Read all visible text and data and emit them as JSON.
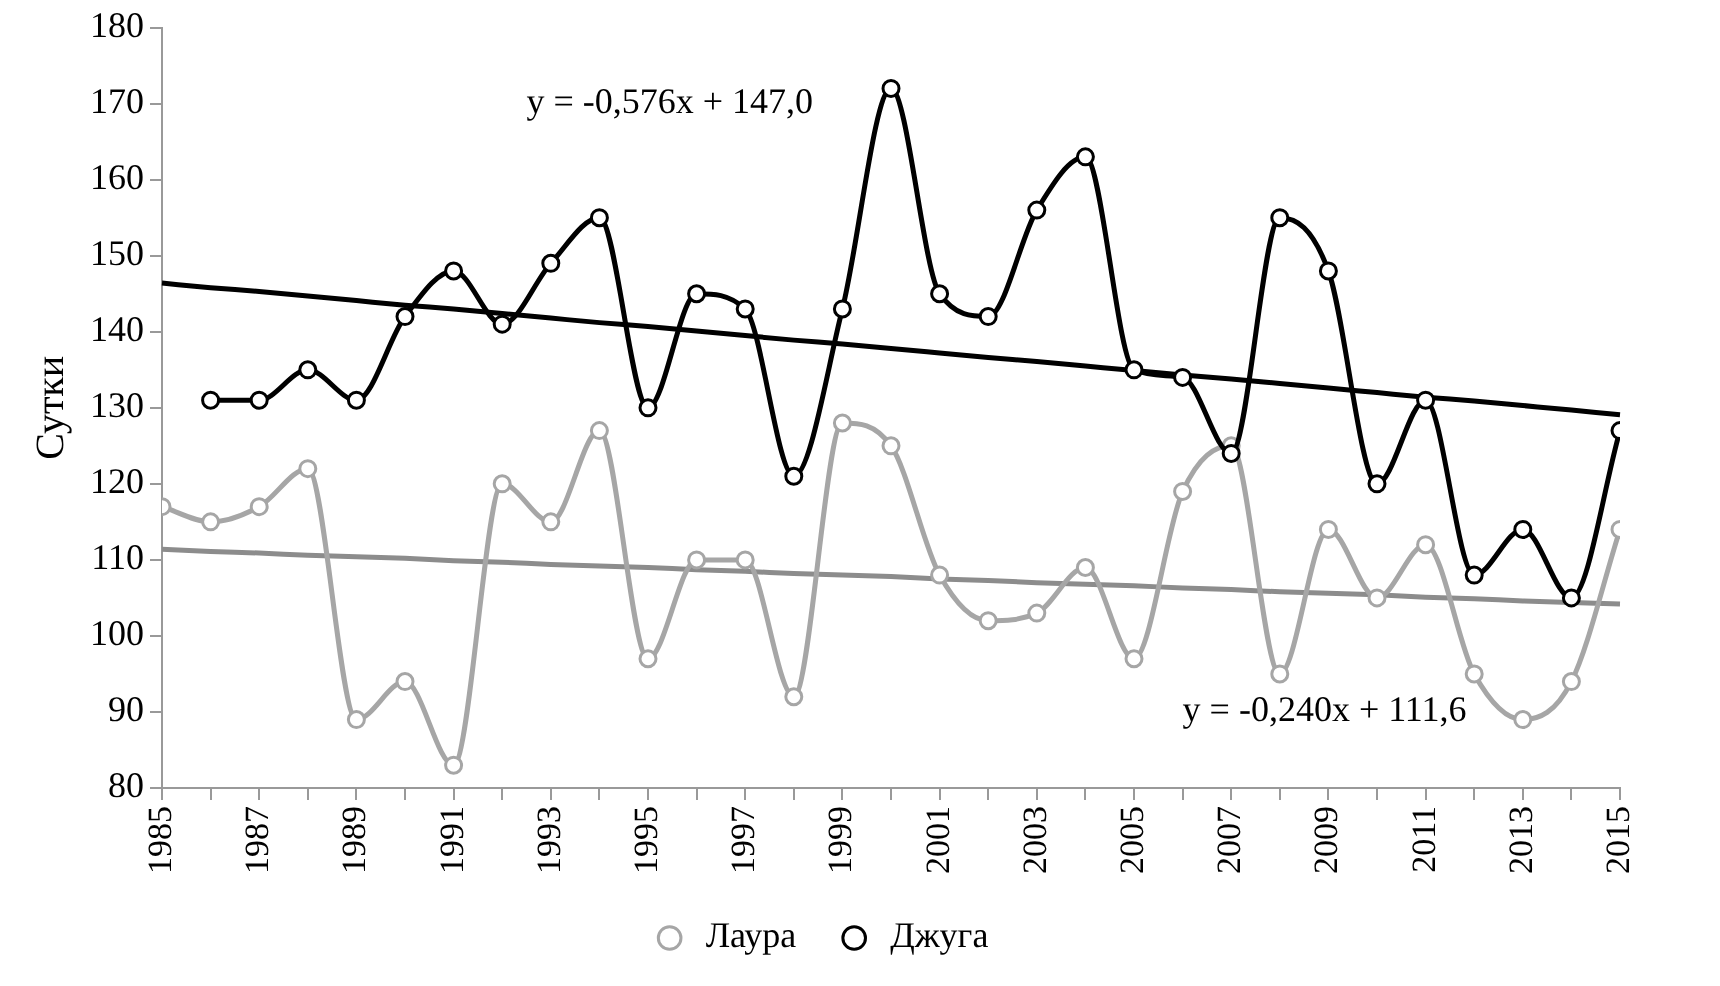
{
  "chart_data": {
    "type": "line",
    "ylabel": "Сутки",
    "x": [
      1985,
      1986,
      1987,
      1988,
      1989,
      1990,
      1991,
      1992,
      1993,
      1994,
      1995,
      1996,
      1997,
      1998,
      1999,
      2000,
      2001,
      2002,
      2003,
      2004,
      2005,
      2006,
      2007,
      2008,
      2009,
      2010,
      2011,
      2012,
      2013,
      2014,
      2015
    ],
    "series": [
      {
        "name": "Лаура",
        "color": "#a6a6a6",
        "marker": "circle",
        "values": [
          117,
          115,
          117,
          122,
          89,
          94,
          83,
          120,
          115,
          127,
          97,
          110,
          110,
          92,
          128,
          125,
          108,
          102,
          103,
          109,
          97,
          119,
          125,
          95,
          114,
          105,
          112,
          95,
          89,
          94,
          114
        ]
      },
      {
        "name": "Джуга",
        "color": "#000000",
        "marker": "circle",
        "values": [
          null,
          131,
          131,
          135,
          131,
          142,
          148,
          141,
          149,
          155,
          130,
          145,
          143,
          121,
          143,
          172,
          145,
          142,
          156,
          163,
          135,
          134,
          124,
          155,
          148,
          120,
          131,
          108,
          114,
          105,
          127
        ]
      },
      {
        "type": "line",
        "color": "#000000",
        "marker": "none",
        "values": [
          146.4,
          145.8,
          145.3,
          144.7,
          144.1,
          143.5,
          143.0,
          142.4,
          141.8,
          141.2,
          140.7,
          140.1,
          139.5,
          138.9,
          138.4,
          137.8,
          137.2,
          136.6,
          136.1,
          135.5,
          134.9,
          134.3,
          133.8,
          133.2,
          132.6,
          132.0,
          131.4,
          130.9,
          130.3,
          129.7,
          129.1
        ]
      },
      {
        "type": "line",
        "color": "#8c8c8c",
        "marker": "none",
        "values": [
          111.4,
          111.1,
          110.9,
          110.6,
          110.4,
          110.2,
          109.9,
          109.7,
          109.4,
          109.2,
          109.0,
          108.7,
          108.5,
          108.2,
          108.0,
          107.8,
          107.5,
          107.3,
          107.0,
          106.8,
          106.6,
          106.3,
          106.1,
          105.8,
          105.6,
          105.4,
          105.1,
          104.9,
          104.6,
          104.4,
          104.2
        ]
      }
    ],
    "xlim": [
      1985,
      2015
    ],
    "xticks": [
      1985,
      {
        "value": 1986,
        "label": null
      },
      1987,
      {
        "value": 1988,
        "label": null
      },
      1989,
      {
        "value": 1990,
        "label": null
      },
      1991,
      {
        "value": 1992,
        "label": null
      },
      1993,
      {
        "value": 1994,
        "label": null
      },
      1995,
      {
        "value": 1996,
        "label": null
      },
      1997,
      {
        "value": 1998,
        "label": null
      },
      1999,
      {
        "value": 2000,
        "label": null
      },
      2001,
      {
        "value": 2002,
        "label": null
      },
      2003,
      {
        "value": 2004,
        "label": null
      },
      2005,
      {
        "value": 2006,
        "label": null
      },
      2007,
      {
        "value": 2008,
        "label": null
      },
      2009,
      {
        "value": 2010,
        "label": null
      },
      2011,
      {
        "value": 2012,
        "label": null
      },
      2013,
      {
        "value": 2014,
        "label": null
      },
      2015
    ],
    "ylim": [
      80,
      180
    ],
    "yticks": [
      80,
      90,
      100,
      110,
      120,
      130,
      140,
      150,
      160,
      170,
      180
    ],
    "annotations": [
      "y = -0,576x + 147,0",
      "y = -0,240x + 111,6"
    ],
    "grid": false,
    "legend": "bottom"
  }
}
